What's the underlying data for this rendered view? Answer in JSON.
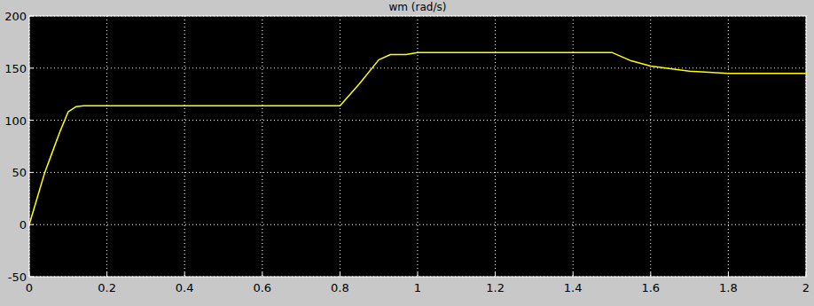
{
  "chart_data": {
    "type": "line",
    "title": "wm (rad/s)",
    "x": [
      0,
      0.02,
      0.04,
      0.06,
      0.08,
      0.1,
      0.12,
      0.14,
      0.8,
      0.85,
      0.9,
      0.93,
      0.97,
      1.0,
      1.5,
      1.55,
      1.6,
      1.7,
      1.8,
      2
    ],
    "values": [
      0,
      25,
      50,
      70,
      90,
      108,
      113,
      114,
      114,
      135,
      158,
      163,
      163,
      165,
      165,
      157,
      152,
      147,
      145,
      145
    ],
    "color": "#ffff00",
    "xlim": [
      0,
      2
    ],
    "xticks": [
      0,
      0.2,
      0.4,
      0.6,
      0.8,
      1,
      1.2,
      1.4,
      1.6,
      1.8,
      2
    ],
    "ylim": [
      -50,
      200
    ],
    "yticks": [
      -50,
      0,
      50,
      100,
      150,
      200
    ],
    "grid": true
  }
}
